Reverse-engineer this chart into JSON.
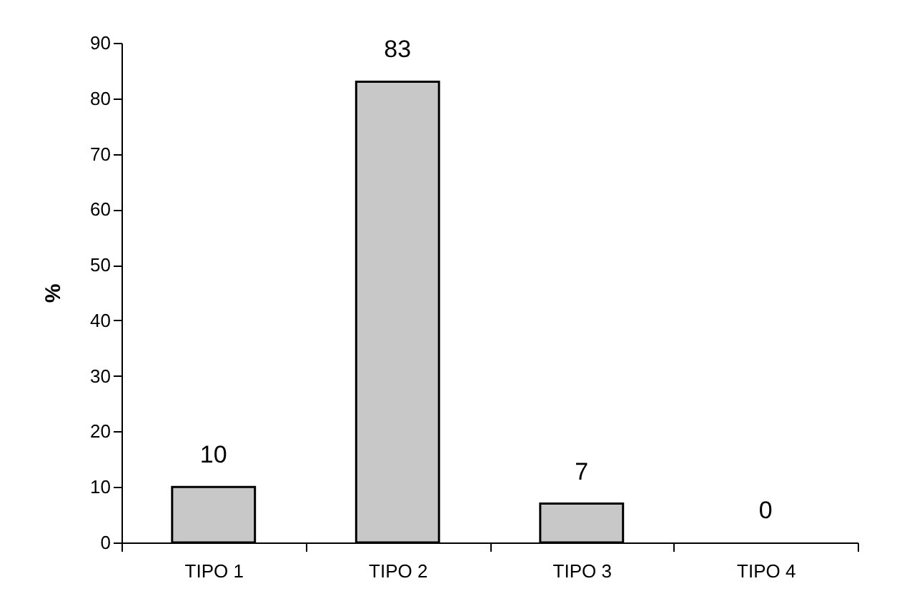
{
  "chart_data": {
    "type": "bar",
    "ylabel": "%",
    "categories": [
      "TIPO 1",
      "TIPO 2",
      "TIPO 3",
      "TIPO 4"
    ],
    "values": [
      10,
      83,
      7,
      0
    ],
    "color": "#c8c8c8",
    "ylim": [
      0,
      90
    ],
    "yticks": [
      0,
      10,
      20,
      30,
      40,
      50,
      60,
      70,
      80,
      90
    ],
    "grid": false,
    "data_labels": true
  }
}
